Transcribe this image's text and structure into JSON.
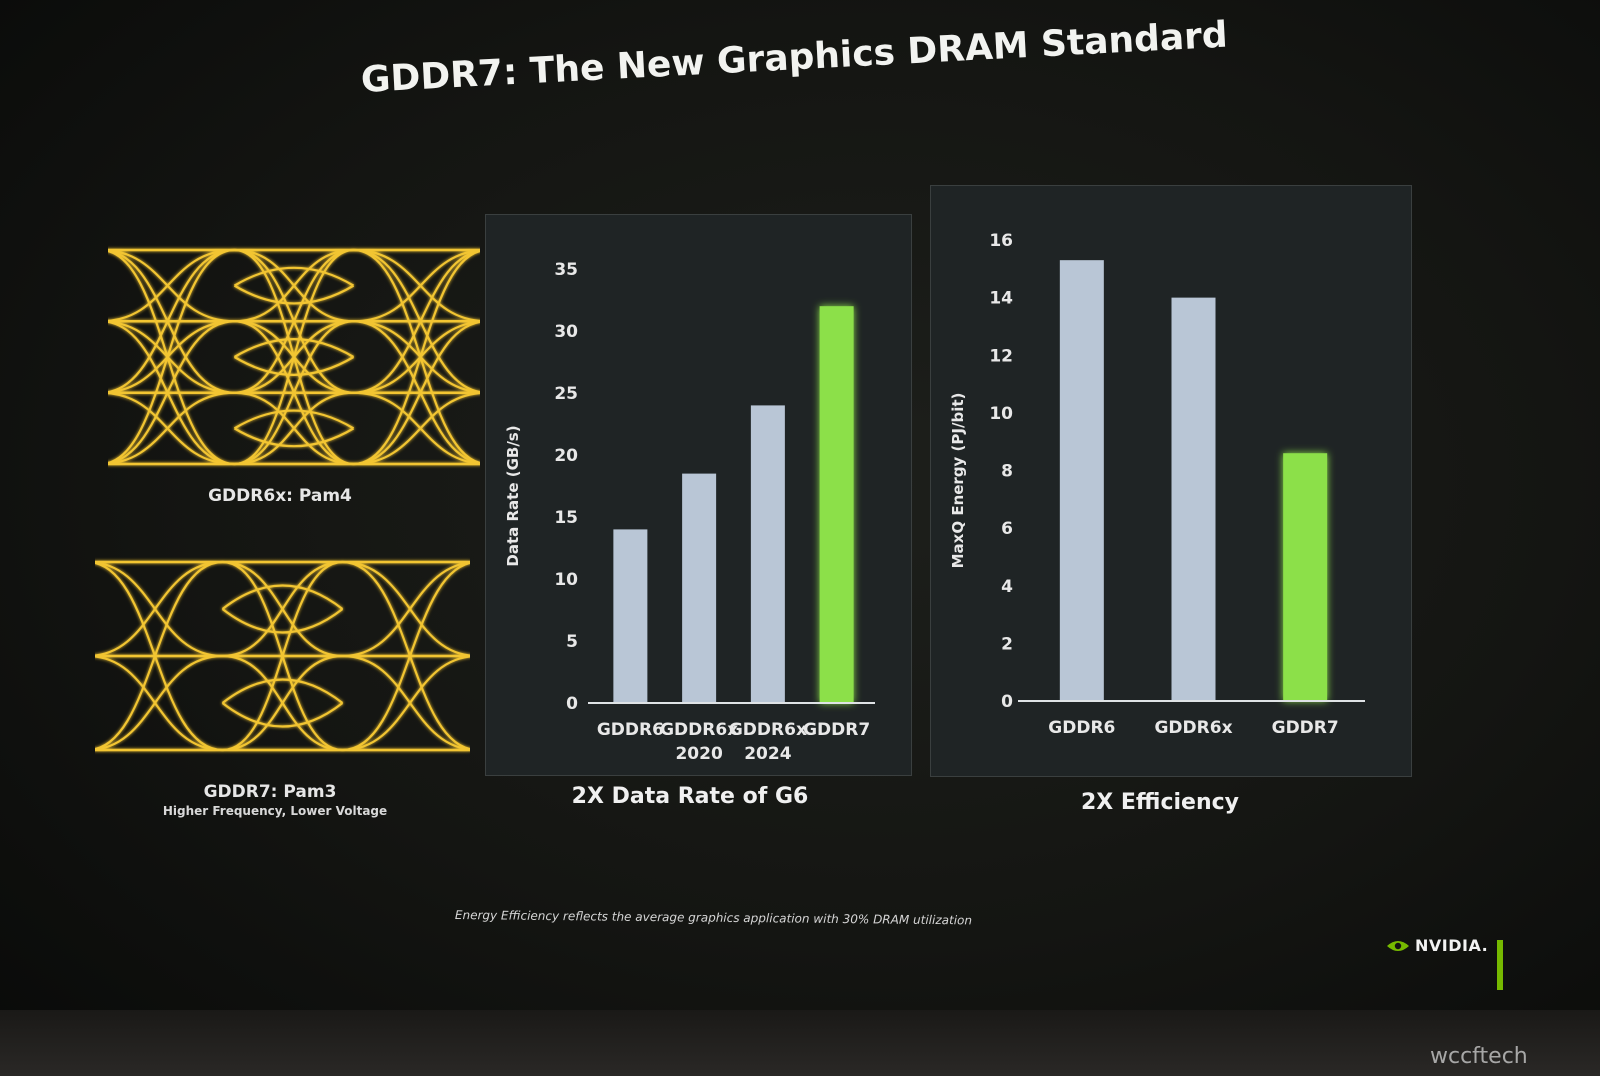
{
  "slide": {
    "title": "GDDR7: The New Graphics DRAM Standard",
    "eye_top_label": "GDDR6x: Pam4",
    "eye_bottom_label": "GDDR7: Pam3",
    "eye_bottom_sublabel": "Higher Frequency, Lower Voltage",
    "footnote": "Energy Efficiency reflects the average graphics application with 30% DRAM utilization",
    "brand": "NVIDIA.",
    "watermark": "wccftech",
    "colors": {
      "eye_trace": "#f2c531",
      "bar_default": "#b9c6d6",
      "bar_highlight": "#8ce04a",
      "panel_bg": "#1f2425",
      "brand_green": "#76b900"
    },
    "icons": {
      "brand": "nvidia-eye-icon",
      "watermark": "wccftech-logo-icon"
    }
  },
  "chart_data": [
    {
      "type": "bar",
      "caption": "2X Data Rate of G6",
      "ylabel": "Data Rate (GB/s)",
      "xlabel": "",
      "ylim": [
        0,
        35
      ],
      "yticks": [
        0,
        5,
        10,
        15,
        20,
        25,
        30,
        35
      ],
      "categories": [
        [
          "GDDR6"
        ],
        [
          "GDDR6x",
          "2020"
        ],
        [
          "GDDR6x",
          "2024"
        ],
        [
          "GDDR7"
        ]
      ],
      "values": [
        14,
        18.5,
        24,
        32
      ],
      "highlight": [
        false,
        false,
        false,
        true
      ],
      "grid": false
    },
    {
      "type": "bar",
      "caption": "2X Efficiency",
      "ylabel": "MaxQ Energy (PJ/bit)",
      "xlabel": "",
      "ylim": [
        0,
        16
      ],
      "yticks": [
        0,
        2,
        4,
        6,
        8,
        10,
        12,
        14,
        16
      ],
      "categories": [
        [
          "GDDR6"
        ],
        [
          "GDDR6x"
        ],
        [
          "GDDR7"
        ]
      ],
      "values": [
        15.3,
        14,
        8.6
      ],
      "highlight": [
        false,
        false,
        true
      ],
      "grid": false
    }
  ]
}
